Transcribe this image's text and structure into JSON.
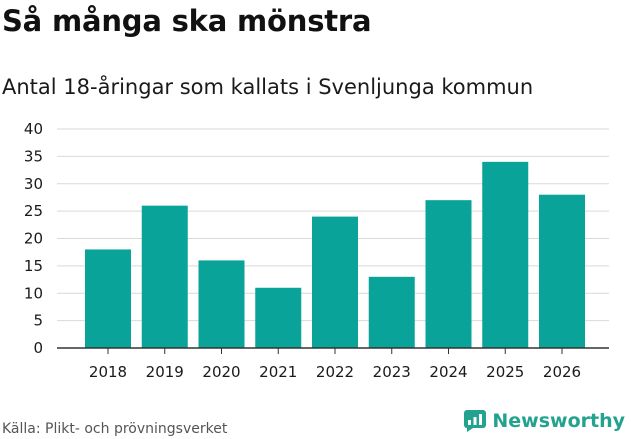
{
  "header": {
    "title": "Så många ska mönstra",
    "subtitle": "Antal 18-åringar som kallats i Svenljunga kommun"
  },
  "footer": {
    "source": "Källa: Plikt- och prövningsverket",
    "brand": "Newsworthy"
  },
  "colors": {
    "bar": "#0aa39a",
    "grid": "#d9d9d9",
    "axis": "#333333",
    "brand": "#23a290"
  },
  "icons": {
    "brand_logo": "newsworthy-logo-icon"
  },
  "chart_data": {
    "type": "bar",
    "categories": [
      "2018",
      "2019",
      "2020",
      "2021",
      "2022",
      "2023",
      "2024",
      "2025",
      "2026"
    ],
    "values": [
      18,
      26,
      16,
      11,
      24,
      13,
      27,
      34,
      28
    ],
    "title": "Så många ska mönstra",
    "subtitle": "Antal 18-åringar som kallats i Svenljunga kommun",
    "xlabel": "",
    "ylabel": "",
    "ylim": [
      0,
      40
    ],
    "yticks": [
      0,
      5,
      10,
      15,
      20,
      25,
      30,
      35,
      40
    ],
    "grid": true,
    "legend": "none"
  }
}
